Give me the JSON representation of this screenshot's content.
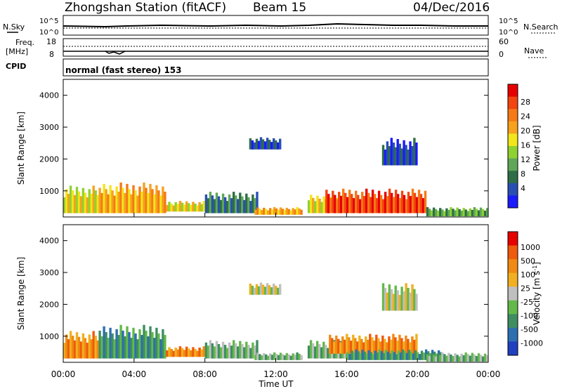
{
  "header": {
    "station": "Zhongshan Station (fitACF)",
    "beam": "Beam 15",
    "date": "04/Dec/2016"
  },
  "top_panels": {
    "nsky_label": "N.Sky",
    "nsearch_label": "N.Search",
    "nsky_ticks": [
      "10^5",
      "10^0"
    ],
    "nsearch_ticks": [
      "10^5",
      "10^0"
    ],
    "freq_label_1": "Freq.",
    "freq_label_2": "[MHz]",
    "freq_ticks": [
      "18",
      "8"
    ],
    "nave_label": "Nave",
    "nave_ticks": [
      "60",
      "0"
    ],
    "cpid_label": "CPID",
    "cpid_value": "normal (fast stereo) 153"
  },
  "colorbars": {
    "power": {
      "title": "Power [dB]",
      "ticks": [
        "28",
        "24",
        "20",
        "16",
        "12",
        "8",
        "4"
      ],
      "colors": [
        "#1a1aff",
        "#2a4fb3",
        "#2e6e46",
        "#5fa65a",
        "#8fd130",
        "#f2e51a",
        "#f6a21e",
        "#f57a17",
        "#f2450f",
        "#e60000"
      ]
    },
    "velocity": {
      "title": "Velocity [m s",
      "title_sup": "-1",
      "title_end": "]",
      "ticks": [
        "1000",
        "500",
        "100",
        "25",
        "-25",
        "-100",
        "-500",
        "-1000"
      ],
      "colors": [
        "#2040c0",
        "#2e6fb0",
        "#3e8e62",
        "#63b84a",
        "#bfbfbf",
        "#f0b020",
        "#f08a12",
        "#f05a0c",
        "#e60000"
      ]
    }
  },
  "chart_data": [
    {
      "type": "heatmap",
      "panel": "power",
      "ylabel": "Slant Range [km]",
      "ylim": [
        180,
        4500
      ],
      "xlim": [
        0,
        24
      ],
      "yticks": [
        "4000",
        "3000",
        "2000",
        "1000"
      ],
      "patches": [
        {
          "t0": 0.0,
          "t1": 2.0,
          "r0": 300,
          "r1": 1200,
          "c": 5
        },
        {
          "t0": 2.0,
          "t1": 5.8,
          "r0": 300,
          "r1": 1300,
          "c": 6
        },
        {
          "t0": 5.8,
          "t1": 8.0,
          "r0": 350,
          "r1": 700,
          "c": 5
        },
        {
          "t0": 8.0,
          "t1": 11.0,
          "r0": 300,
          "r1": 1000,
          "c": 2
        },
        {
          "t0": 10.8,
          "t1": 13.5,
          "r0": 250,
          "r1": 500,
          "c": 6
        },
        {
          "t0": 10.5,
          "t1": 12.3,
          "r0": 2300,
          "r1": 2700,
          "c": 1
        },
        {
          "t0": 13.8,
          "t1": 16.0,
          "r0": 300,
          "r1": 900,
          "c": 5
        },
        {
          "t0": 14.8,
          "t1": 20.5,
          "r0": 300,
          "r1": 1100,
          "c": 8
        },
        {
          "t0": 18.0,
          "t1": 20.0,
          "r0": 1800,
          "r1": 2700,
          "c": 1
        },
        {
          "t0": 20.5,
          "t1": 24.0,
          "r0": 200,
          "r1": 500,
          "c": 3
        }
      ]
    },
    {
      "type": "heatmap",
      "panel": "velocity",
      "ylabel": "Slant Range [km]",
      "xlabel": "Time UT",
      "ylim": [
        180,
        4500
      ],
      "xlim": [
        0,
        24
      ],
      "xticks": [
        "00:00",
        "04:00",
        "08:00",
        "12:00",
        "16:00",
        "20:00",
        "00:00"
      ],
      "yticks": [
        "4000",
        "3000",
        "2000",
        "1000"
      ],
      "patches": [
        {
          "t0": 0.0,
          "t1": 2.0,
          "r0": 300,
          "r1": 1200,
          "c": 6
        },
        {
          "t0": 2.0,
          "t1": 5.8,
          "r0": 300,
          "r1": 1400,
          "c": 2
        },
        {
          "t0": 5.8,
          "t1": 8.0,
          "r0": 350,
          "r1": 700,
          "c": 6
        },
        {
          "t0": 8.0,
          "t1": 11.0,
          "r0": 300,
          "r1": 900,
          "c": 3
        },
        {
          "t0": 10.8,
          "t1": 13.5,
          "r0": 250,
          "r1": 500,
          "c": 3
        },
        {
          "t0": 10.5,
          "t1": 12.3,
          "r0": 2300,
          "r1": 2700,
          "c": 4
        },
        {
          "t0": 13.8,
          "t1": 16.2,
          "r0": 300,
          "r1": 900,
          "c": 3
        },
        {
          "t0": 15.0,
          "t1": 20.0,
          "r0": 450,
          "r1": 1100,
          "c": 6
        },
        {
          "t0": 16.0,
          "t1": 21.5,
          "r0": 250,
          "r1": 600,
          "c": 2
        },
        {
          "t0": 18.0,
          "t1": 20.0,
          "r0": 1800,
          "r1": 2700,
          "c": 4
        },
        {
          "t0": 20.5,
          "t1": 24.0,
          "r0": 200,
          "r1": 500,
          "c": 3
        }
      ]
    }
  ]
}
